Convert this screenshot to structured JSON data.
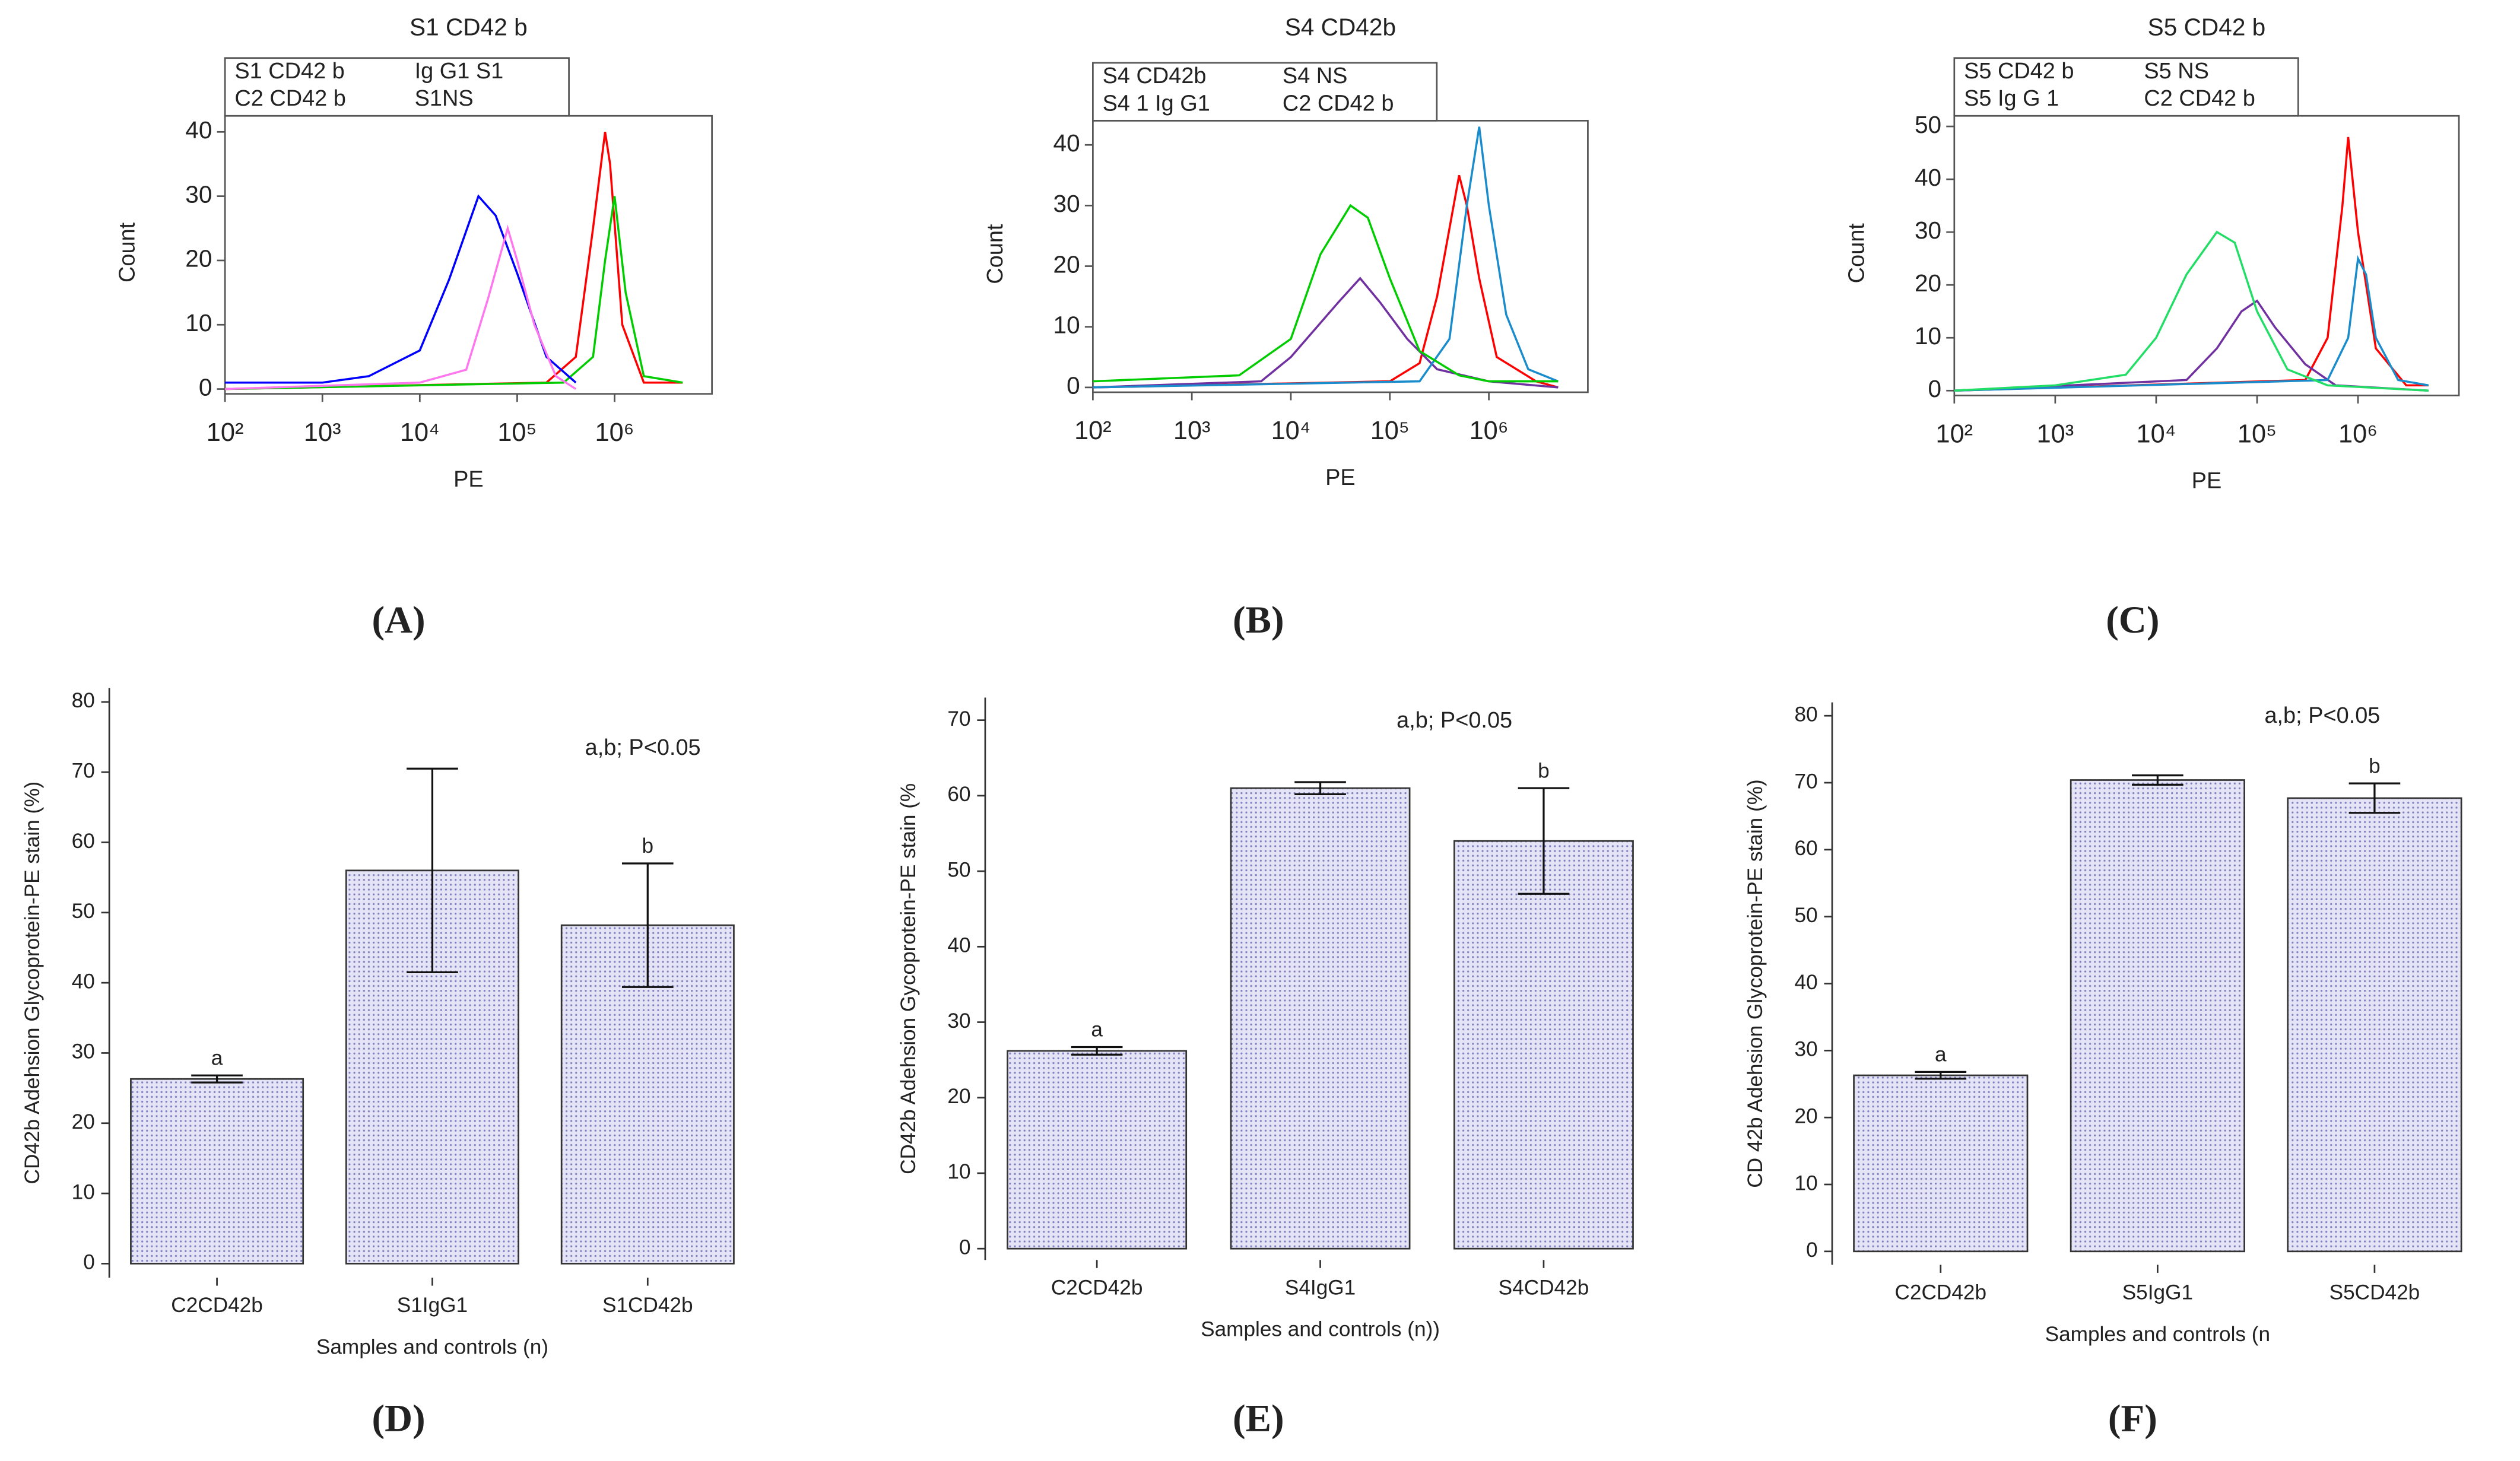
{
  "chart_data": [
    {
      "type": "line",
      "label": "(A)",
      "title": "S1 CD42 b",
      "xlabel": "PE",
      "ylabel": "Count",
      "xlog": true,
      "xlim": [
        100,
        10000000
      ],
      "ylim": [
        0,
        42.5
      ],
      "xticks": [
        {
          "value": 100,
          "label": "10²"
        },
        {
          "value": 1000,
          "label": "10³"
        },
        {
          "value": 10000,
          "label": "10⁴"
        },
        {
          "value": 100000,
          "label": "10⁵"
        },
        {
          "value": 1000000,
          "label": "10⁶"
        }
      ],
      "yticks": [
        0,
        10,
        20,
        30,
        40
      ],
      "series": [
        {
          "name": "S1 CD42 b",
          "color": "#ff0000",
          "x": [
            100,
            200000,
            400000,
            600000,
            800000,
            900000,
            1200000,
            2000000,
            5000000
          ],
          "values": [
            0,
            1,
            5,
            25,
            40,
            35,
            10,
            1,
            1
          ]
        },
        {
          "name": "Ig G1 S1",
          "color": "#00cc00",
          "x": [
            100,
            300000,
            600000,
            800000,
            1000000,
            1300000,
            2000000,
            5000000
          ],
          "values": [
            0,
            1,
            5,
            20,
            30,
            15,
            2,
            1
          ]
        },
        {
          "name": "C2 CD42 b",
          "color": "#0000ff",
          "x": [
            100,
            1000,
            3000,
            10000,
            20000,
            40000,
            60000,
            100000,
            200000,
            400000
          ],
          "values": [
            1,
            1,
            2,
            6,
            17,
            30,
            27,
            18,
            5,
            1
          ]
        },
        {
          "name": "S1NS",
          "color": "#ff77ee",
          "x": [
            100,
            10000,
            30000,
            50000,
            80000,
            100000,
            150000,
            250000,
            400000
          ],
          "values": [
            0,
            1,
            3,
            14,
            25,
            20,
            10,
            2,
            0
          ]
        }
      ]
    },
    {
      "type": "line",
      "label": "(B)",
      "title": "S4 CD42b",
      "xlabel": "PE",
      "ylabel": "Count",
      "xlog": true,
      "xlim": [
        100,
        10000000
      ],
      "ylim": [
        0,
        44
      ],
      "xticks": [
        {
          "value": 100,
          "label": "10²"
        },
        {
          "value": 1000,
          "label": "10³"
        },
        {
          "value": 10000,
          "label": "10⁴"
        },
        {
          "value": 100000,
          "label": "10⁵"
        },
        {
          "value": 1000000,
          "label": "10⁶"
        }
      ],
      "yticks": [
        0,
        10,
        20,
        30,
        40
      ],
      "series": [
        {
          "name": "S4 CD42b",
          "color": "#ff0000",
          "x": [
            100,
            100000,
            200000,
            300000,
            500000,
            600000,
            800000,
            1200000,
            3000000,
            5000000
          ],
          "values": [
            0,
            1,
            4,
            15,
            35,
            30,
            18,
            5,
            1,
            0
          ]
        },
        {
          "name": "S4 NS",
          "color": "#7030a0",
          "x": [
            100,
            5000,
            10000,
            30000,
            50000,
            80000,
            150000,
            300000,
            1000000,
            5000000
          ],
          "values": [
            0,
            1,
            5,
            14,
            18,
            14,
            8,
            3,
            1,
            0
          ]
        },
        {
          "name": "S4 1 Ig G1",
          "color": "#1a8ccc",
          "x": [
            100,
            200000,
            400000,
            600000,
            800000,
            1000000,
            1500000,
            2500000,
            5000000
          ],
          "values": [
            0,
            1,
            8,
            30,
            43,
            30,
            12,
            3,
            1
          ]
        },
        {
          "name": "C2 CD42 b",
          "color": "#00cc00",
          "x": [
            100,
            3000,
            10000,
            20000,
            40000,
            60000,
            100000,
            200000,
            500000,
            1000000,
            5000000
          ],
          "values": [
            1,
            2,
            8,
            22,
            30,
            28,
            18,
            6,
            2,
            1,
            1
          ]
        }
      ]
    },
    {
      "type": "line",
      "label": "(C)",
      "title": "S5 CD42 b",
      "xlabel": "PE",
      "ylabel": "Count",
      "xlog": true,
      "xlim": [
        100,
        10000000
      ],
      "ylim": [
        0,
        52
      ],
      "xticks": [
        {
          "value": 100,
          "label": "10²"
        },
        {
          "value": 1000,
          "label": "10³"
        },
        {
          "value": 10000,
          "label": "10⁴"
        },
        {
          "value": 100000,
          "label": "10⁵"
        },
        {
          "value": 1000000,
          "label": "10⁶"
        }
      ],
      "yticks": [
        0,
        10,
        20,
        30,
        40,
        50
      ],
      "series": [
        {
          "name": "S5 CD42 b",
          "color": "#ff0000",
          "x": [
            100,
            300000,
            500000,
            700000,
            800000,
            1000000,
            1500000,
            3000000,
            5000000
          ],
          "values": [
            0,
            2,
            10,
            35,
            48,
            30,
            8,
            1,
            1
          ]
        },
        {
          "name": "S5 NS",
          "color": "#7030a0",
          "x": [
            100,
            20000,
            40000,
            70000,
            100000,
            150000,
            300000,
            600000,
            5000000
          ],
          "values": [
            0,
            2,
            8,
            15,
            17,
            12,
            5,
            1,
            0
          ]
        },
        {
          "name": "S5 Ig G 1",
          "color": "#1a8ccc",
          "x": [
            100,
            500000,
            800000,
            1000000,
            1200000,
            1500000,
            2500000,
            5000000
          ],
          "values": [
            0,
            2,
            10,
            25,
            22,
            10,
            2,
            1
          ]
        },
        {
          "name": "C2 CD42 b",
          "color": "#22dd66",
          "x": [
            100,
            1000,
            5000,
            10000,
            20000,
            40000,
            60000,
            100000,
            200000,
            500000,
            5000000
          ],
          "values": [
            0,
            1,
            3,
            10,
            22,
            30,
            28,
            15,
            4,
            1,
            0
          ]
        }
      ]
    },
    {
      "type": "bar",
      "label": "(D)",
      "xlabel": "Samples and controls (n)",
      "ylabel": "CD42b Adehsion Glycoprotein-PE stain (%)",
      "note": "a,b; P<0.05",
      "categories": [
        "C2CD42b",
        "S1IgG1",
        "S1CD42b"
      ],
      "values": [
        26.3,
        56,
        48.2
      ],
      "errors": [
        0.5,
        14.5,
        8.8
      ],
      "bar_labels": [
        "a",
        null,
        "b"
      ],
      "color": "#dcdcf2",
      "ylim": [
        -2,
        82
      ],
      "yticks": [
        0,
        10,
        20,
        30,
        40,
        50,
        60,
        70,
        80
      ]
    },
    {
      "type": "bar",
      "label": "(E)",
      "xlabel": "Samples and controls (n))",
      "ylabel": "CD42b Adehsion Gycoprotein-PE stain (%",
      "note": "a,b; P<0.05",
      "categories": [
        "C2CD42b",
        "S4IgG1",
        "S4CD42b"
      ],
      "values": [
        26.2,
        61,
        54
      ],
      "errors": [
        0.5,
        0.8,
        7
      ],
      "bar_labels": [
        "a",
        null,
        "b"
      ],
      "color": "#dcdcf2",
      "ylim": [
        -1.5,
        73
      ],
      "yticks": [
        0,
        10,
        20,
        30,
        40,
        50,
        60,
        70
      ]
    },
    {
      "type": "bar",
      "label": "(F)",
      "xlabel": "Samples and controls (n",
      "ylabel": "CD 42b Adehsion Glycoprotein-PE stain (%)",
      "note": "a,b; P<0.05",
      "categories": [
        "C2CD42b",
        "S5IgG1",
        "S5CD42b"
      ],
      "values": [
        26.3,
        70.4,
        67.7
      ],
      "errors": [
        0.5,
        0.7,
        2.2
      ],
      "bar_labels": [
        "a",
        null,
        "b"
      ],
      "color": "#dcdcf2",
      "ylim": [
        -2,
        82
      ],
      "yticks": [
        0,
        10,
        20,
        30,
        40,
        50,
        60,
        70,
        80
      ]
    }
  ]
}
